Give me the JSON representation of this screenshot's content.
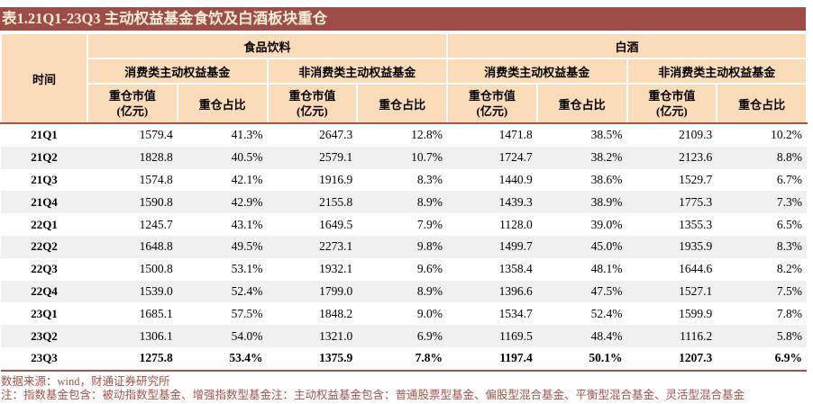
{
  "title": "表1.21Q1-23Q3 主动权益基金食饮及白酒板块重仓",
  "table": {
    "time_header": "时间",
    "groups": [
      {
        "label": "食品饮料",
        "subgroups": [
          "消费类主动权益基金",
          "非消费类主动权益基金"
        ]
      },
      {
        "label": "白酒",
        "subgroups": [
          "消费类主动权益基金",
          "非消费类主动权益基金"
        ]
      }
    ],
    "metric_value_label": "重仓市值",
    "metric_value_unit": "(亿元)",
    "metric_ratio_label": "重仓占比",
    "rows": [
      {
        "period": "21Q1",
        "values": [
          "1579.4",
          "41.3%",
          "2647.3",
          "12.8%",
          "1471.8",
          "38.5%",
          "2109.3",
          "10.2%"
        ],
        "bold": false
      },
      {
        "period": "21Q2",
        "values": [
          "1828.8",
          "40.5%",
          "2579.1",
          "10.7%",
          "1724.7",
          "38.2%",
          "2123.6",
          "8.8%"
        ],
        "bold": false
      },
      {
        "period": "21Q3",
        "values": [
          "1574.8",
          "42.1%",
          "1916.9",
          "8.3%",
          "1440.9",
          "38.6%",
          "1529.7",
          "6.7%"
        ],
        "bold": false
      },
      {
        "period": "21Q4",
        "values": [
          "1590.8",
          "42.9%",
          "2155.8",
          "8.9%",
          "1439.3",
          "38.9%",
          "1775.3",
          "7.3%"
        ],
        "bold": false
      },
      {
        "period": "22Q1",
        "values": [
          "1245.7",
          "43.1%",
          "1649.5",
          "7.9%",
          "1128.0",
          "39.0%",
          "1355.3",
          "6.5%"
        ],
        "bold": false
      },
      {
        "period": "22Q2",
        "values": [
          "1648.8",
          "49.5%",
          "2273.1",
          "9.8%",
          "1499.7",
          "45.0%",
          "1935.9",
          "8.3%"
        ],
        "bold": false
      },
      {
        "period": "22Q3",
        "values": [
          "1500.8",
          "53.1%",
          "1932.1",
          "9.6%",
          "1358.4",
          "48.1%",
          "1644.6",
          "8.2%"
        ],
        "bold": false
      },
      {
        "period": "22Q4",
        "values": [
          "1539.0",
          "52.4%",
          "1799.0",
          "8.9%",
          "1396.6",
          "47.5%",
          "1527.1",
          "7.5%"
        ],
        "bold": false
      },
      {
        "period": "23Q1",
        "values": [
          "1685.1",
          "57.5%",
          "1848.2",
          "9.0%",
          "1534.7",
          "52.4%",
          "1599.9",
          "7.8%"
        ],
        "bold": false
      },
      {
        "period": "23Q2",
        "values": [
          "1306.1",
          "54.0%",
          "1321.0",
          "6.9%",
          "1169.5",
          "48.4%",
          "1116.2",
          "5.8%"
        ],
        "bold": false
      },
      {
        "period": "23Q3",
        "values": [
          "1275.8",
          "53.4%",
          "1375.9",
          "7.8%",
          "1197.4",
          "50.1%",
          "1207.3",
          "6.9%"
        ],
        "bold": true
      }
    ]
  },
  "footer": {
    "source": "数据来源：wind，财通证券研究所",
    "note": "注：指数基金包含：被动指数型基金、增强指数型基金注：主动权益基金包含：普通股票型基金、偏股型混合基金、平衡型混合基金、灵活型混合基金"
  },
  "colors": {
    "title_bar": "#9E4C47",
    "title_text": "#F6EDD9",
    "header_bg": "#FBDCB9",
    "row_alt": "#F0F0F0",
    "accent_line": "#A5524B",
    "note_text": "#A5524B"
  }
}
